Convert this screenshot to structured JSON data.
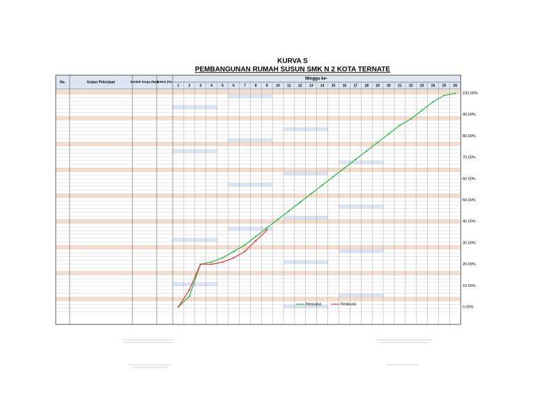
{
  "header": {
    "title": "KURVA S",
    "subtitle": "PEMBANGUNAN RUMAH SUSUN SMK N 2 KOTA TERNATE"
  },
  "table": {
    "columns": [
      "No.",
      "Uraian Pekerjaan",
      "Jumlah harga (Rp.)",
      "Bobot (%)"
    ],
    "week_header": "Minggu ke-"
  },
  "curve": {
    "type": "line",
    "x": [
      1,
      2,
      3,
      4,
      5,
      6,
      7,
      8,
      9,
      10,
      11,
      12,
      13,
      14,
      15,
      16,
      17,
      18,
      19,
      20,
      21,
      22,
      23,
      24,
      25,
      26
    ],
    "ylim": [
      0,
      100
    ],
    "yticks": [
      {
        "value": 0,
        "label": "0.00%"
      },
      {
        "value": 10,
        "label": "10.00%"
      },
      {
        "value": 20,
        "label": "20.00%"
      },
      {
        "value": 30,
        "label": "30.00%"
      },
      {
        "value": 40,
        "label": "40.00%"
      },
      {
        "value": 50,
        "label": "50.00%"
      },
      {
        "value": 60,
        "label": "60.00%"
      },
      {
        "value": 70,
        "label": "70.00%"
      },
      {
        "value": 80,
        "label": "80.00%"
      },
      {
        "value": 90,
        "label": "90.00%"
      },
      {
        "value": 100,
        "label": "100.00%"
      }
    ],
    "series": [
      {
        "name": "Rencana",
        "color": "#2db84a",
        "values": [
          0,
          5,
          20,
          21,
          23,
          26,
          29,
          33,
          37,
          41,
          45,
          49,
          53,
          57,
          61,
          65,
          69,
          73,
          77,
          81,
          85,
          88,
          92,
          96,
          99,
          100
        ]
      },
      {
        "name": "Realisasi",
        "color": "#d9413a",
        "values": [
          0,
          8,
          20,
          20,
          21,
          23,
          26,
          31,
          36,
          null,
          null,
          null,
          null,
          null,
          null,
          null,
          null,
          null,
          null,
          null,
          null,
          null,
          null,
          null,
          null,
          null
        ]
      }
    ]
  }
}
